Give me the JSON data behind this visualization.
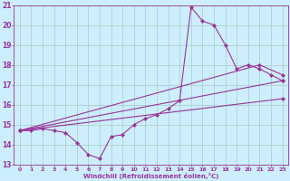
{
  "xlabel": "Windchill (Refroidissement éolien,°C)",
  "bg_color": "#cceeff",
  "line_color": "#993399",
  "grid_color": "#aaccbb",
  "xlim": [
    -0.5,
    23.5
  ],
  "ylim": [
    13,
    21
  ],
  "xticks": [
    0,
    1,
    2,
    3,
    4,
    5,
    6,
    7,
    8,
    9,
    10,
    11,
    12,
    13,
    14,
    15,
    16,
    17,
    18,
    19,
    20,
    21,
    22,
    23
  ],
  "yticks": [
    13,
    14,
    15,
    16,
    17,
    18,
    19,
    20,
    21
  ],
  "series": [
    [
      0,
      14.7
    ],
    [
      1,
      14.7
    ],
    [
      2,
      14.8
    ],
    [
      3,
      14.7
    ],
    [
      4,
      14.6
    ],
    [
      5,
      14.1
    ],
    [
      6,
      13.5
    ],
    [
      7,
      13.3
    ],
    [
      8,
      14.4
    ],
    [
      9,
      14.5
    ],
    [
      10,
      15.0
    ],
    [
      11,
      15.3
    ],
    [
      12,
      15.5
    ],
    [
      13,
      15.8
    ],
    [
      14,
      16.2
    ],
    [
      15,
      20.9
    ],
    [
      16,
      20.2
    ],
    [
      17,
      20.0
    ],
    [
      18,
      19.0
    ],
    [
      19,
      17.8
    ],
    [
      20,
      18.0
    ],
    [
      21,
      17.8
    ],
    [
      22,
      17.5
    ],
    [
      23,
      17.2
    ]
  ],
  "line2": [
    [
      0,
      14.7
    ],
    [
      21,
      18.0
    ],
    [
      23,
      17.5
    ]
  ],
  "line3": [
    [
      0,
      14.7
    ],
    [
      23,
      17.2
    ]
  ],
  "line4": [
    [
      0,
      14.7
    ],
    [
      23,
      16.3
    ]
  ]
}
